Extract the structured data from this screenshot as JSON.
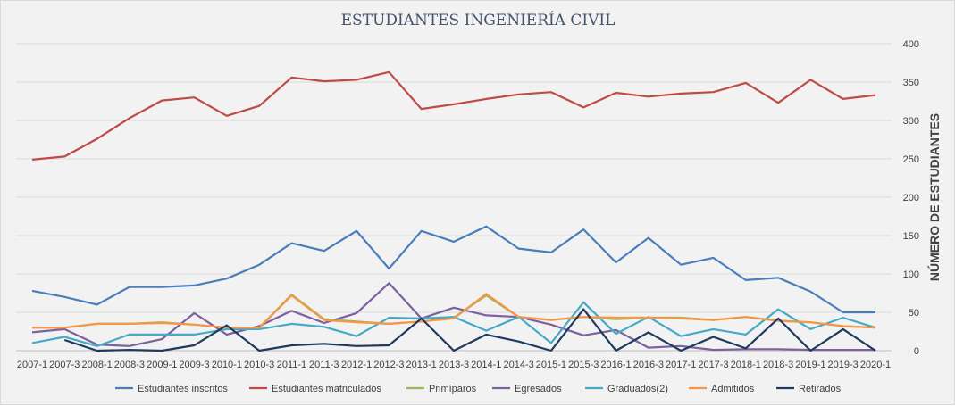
{
  "chart_data": {
    "type": "line",
    "title": "ESTUDIANTES INGENIERÍA CIVIL",
    "xlabel": "",
    "ylabel": "NÚMERO DE ESTUDIANTES",
    "ylim": [
      0,
      400
    ],
    "yticks": [
      0,
      50,
      100,
      150,
      200,
      250,
      300,
      350,
      400
    ],
    "y_axis_side": "right",
    "grid": true,
    "legend_position": "bottom",
    "categories": [
      "2007-1",
      "2007-3",
      "2008-1",
      "2008-3",
      "2009-1",
      "2009-3",
      "2010-1",
      "2010-3",
      "2011-1",
      "2011-3",
      "2012-1",
      "2012-3",
      "2013-1",
      "2013-3",
      "2014-1",
      "2014-3",
      "2015-1",
      "2015-3",
      "2016-1",
      "2016-3",
      "2017-1",
      "2017-3",
      "2018-1",
      "2018-3",
      "2019-1",
      "2019-3",
      "2020-1"
    ],
    "series": [
      {
        "name": "Estudiantes inscritos",
        "color": "#4a7ebb",
        "values": [
          78,
          70,
          60,
          83,
          83,
          85,
          94,
          112,
          140,
          130,
          156,
          107,
          156,
          142,
          162,
          133,
          128,
          158,
          115,
          147,
          112,
          121,
          92,
          95,
          77,
          50,
          50
        ]
      },
      {
        "name": "Estudiantes matriculados",
        "color": "#be4b48",
        "values": [
          249,
          253,
          276,
          303,
          326,
          330,
          306,
          319,
          356,
          351,
          353,
          363,
          315,
          321,
          328,
          334,
          337,
          317,
          336,
          331,
          335,
          337,
          349,
          323,
          353,
          328,
          333
        ]
      },
      {
        "name": "Primíparos",
        "color": "#98b954",
        "values": [
          30,
          30,
          35,
          35,
          37,
          34,
          30,
          30,
          73,
          41,
          38,
          35,
          38,
          43,
          72,
          44,
          40,
          44,
          41,
          43,
          43,
          40,
          44,
          39,
          37,
          32,
          30
        ]
      },
      {
        "name": "Egresados",
        "color": "#7d60a0",
        "values": [
          24,
          28,
          8,
          6,
          15,
          49,
          21,
          32,
          52,
          36,
          49,
          88,
          42,
          56,
          46,
          44,
          34,
          20,
          27,
          4,
          6,
          1,
          2,
          2,
          1,
          1,
          1
        ]
      },
      {
        "name": "Graduados(2)",
        "color": "#46aac5",
        "values": [
          10,
          18,
          6,
          21,
          21,
          21,
          28,
          28,
          35,
          31,
          19,
          43,
          42,
          44,
          26,
          44,
          10,
          63,
          22,
          44,
          19,
          28,
          21,
          54,
          28,
          43,
          30
        ]
      },
      {
        "name": "Admitidos",
        "color": "#f79646",
        "values": [
          30,
          30,
          35,
          35,
          36,
          34,
          30,
          30,
          72,
          40,
          37,
          35,
          38,
          42,
          74,
          44,
          40,
          44,
          43,
          43,
          42,
          40,
          44,
          39,
          37,
          32,
          30
        ]
      },
      {
        "name": "Retirados",
        "color": "#1f3a5f",
        "values": [
          null,
          14,
          0,
          1,
          0,
          7,
          33,
          0,
          7,
          9,
          6,
          7,
          42,
          0,
          21,
          12,
          0,
          54,
          0,
          24,
          0,
          18,
          3,
          42,
          0,
          28,
          0
        ]
      }
    ]
  }
}
